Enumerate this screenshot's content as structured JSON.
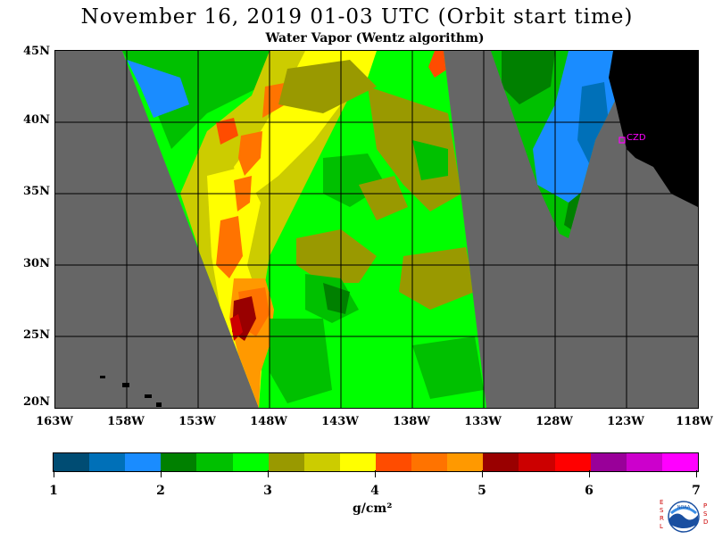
{
  "header": {
    "title": "November 16, 2019  01-03 UTC  (Orbit start time)",
    "subtitle": "Water Vapor (Wentz algorithm)"
  },
  "map": {
    "lat_labels": [
      "45N",
      "40N",
      "35N",
      "30N",
      "25N",
      "20N"
    ],
    "lon_labels": [
      "163W",
      "158W",
      "153W",
      "148W",
      "143W",
      "138W",
      "133W",
      "128W",
      "123W",
      "118W"
    ],
    "station_label": "CZD",
    "no_data_color": "#666666",
    "land_color": "#000000"
  },
  "colorbar": {
    "tick_labels": [
      "1",
      "2",
      "3",
      "4",
      "5",
      "6",
      "7"
    ],
    "units": "g/cm²",
    "colors": [
      "#004c73",
      "#0070b8",
      "#1a8cff",
      "#008000",
      "#00c000",
      "#00ff00",
      "#999900",
      "#cccc00",
      "#ffff00",
      "#ff4c00",
      "#ff7300",
      "#ff9900",
      "#990000",
      "#cc0000",
      "#ff0000",
      "#990099",
      "#cc00cc",
      "#ff00ff"
    ]
  },
  "logo": {
    "left_text": "ESRL",
    "right_text": "PSD",
    "center_text": "NOAA"
  }
}
